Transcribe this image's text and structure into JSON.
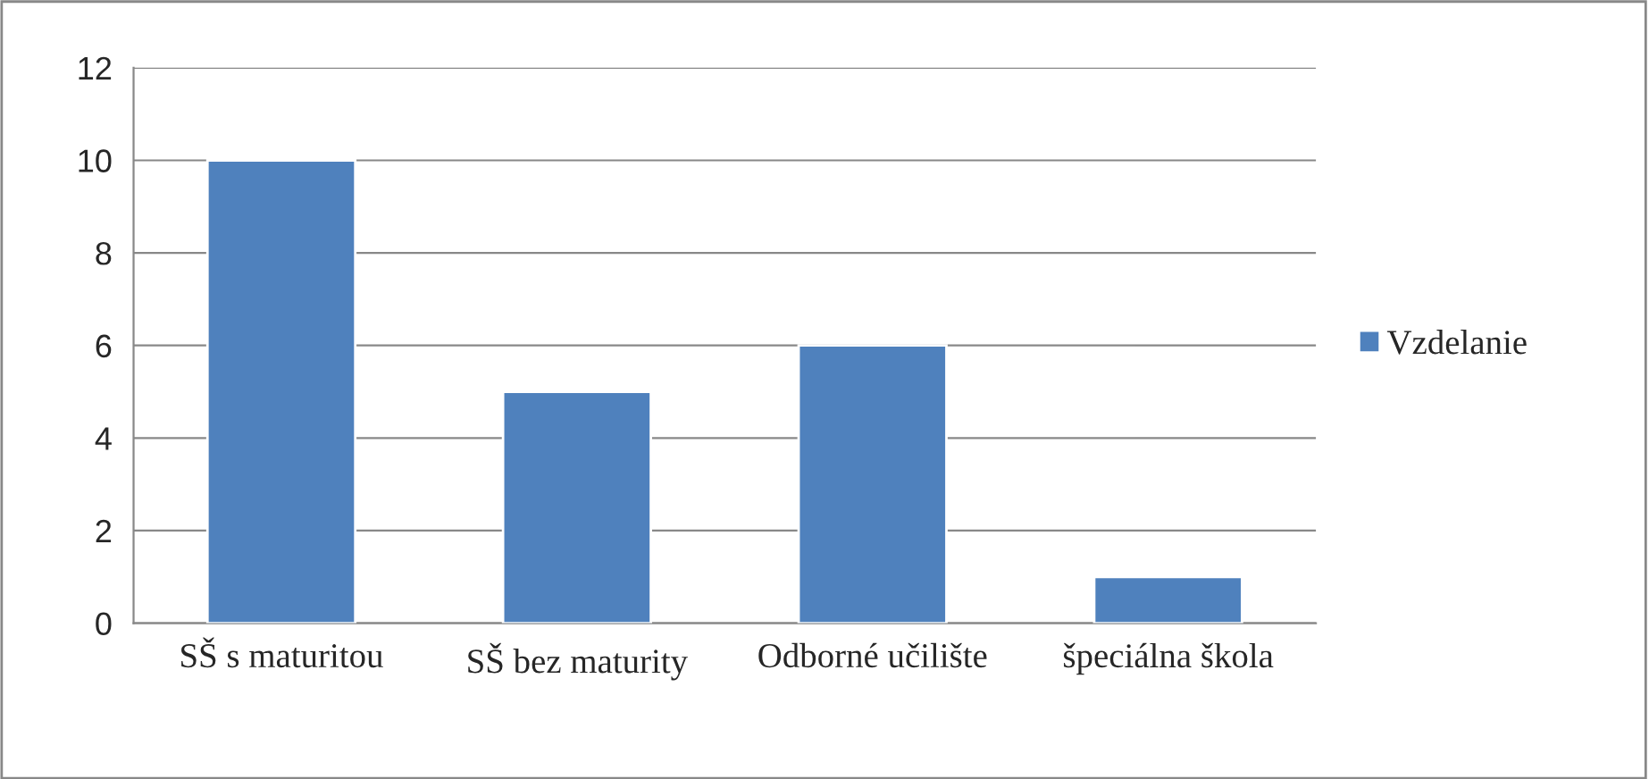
{
  "chart_data": {
    "type": "bar",
    "categories": [
      "SŠ s maturitou",
      "SŠ bez maturity",
      "Odborné učilište",
      "špeciálna škola"
    ],
    "series": [
      {
        "name": "Vzdelanie",
        "color": "#4f81bd",
        "values": [
          10,
          5,
          6,
          1
        ]
      }
    ],
    "ylim": [
      0,
      12
    ],
    "yticks": [
      0,
      2,
      4,
      6,
      8,
      10,
      12
    ],
    "grid": "y",
    "legend": "right"
  }
}
